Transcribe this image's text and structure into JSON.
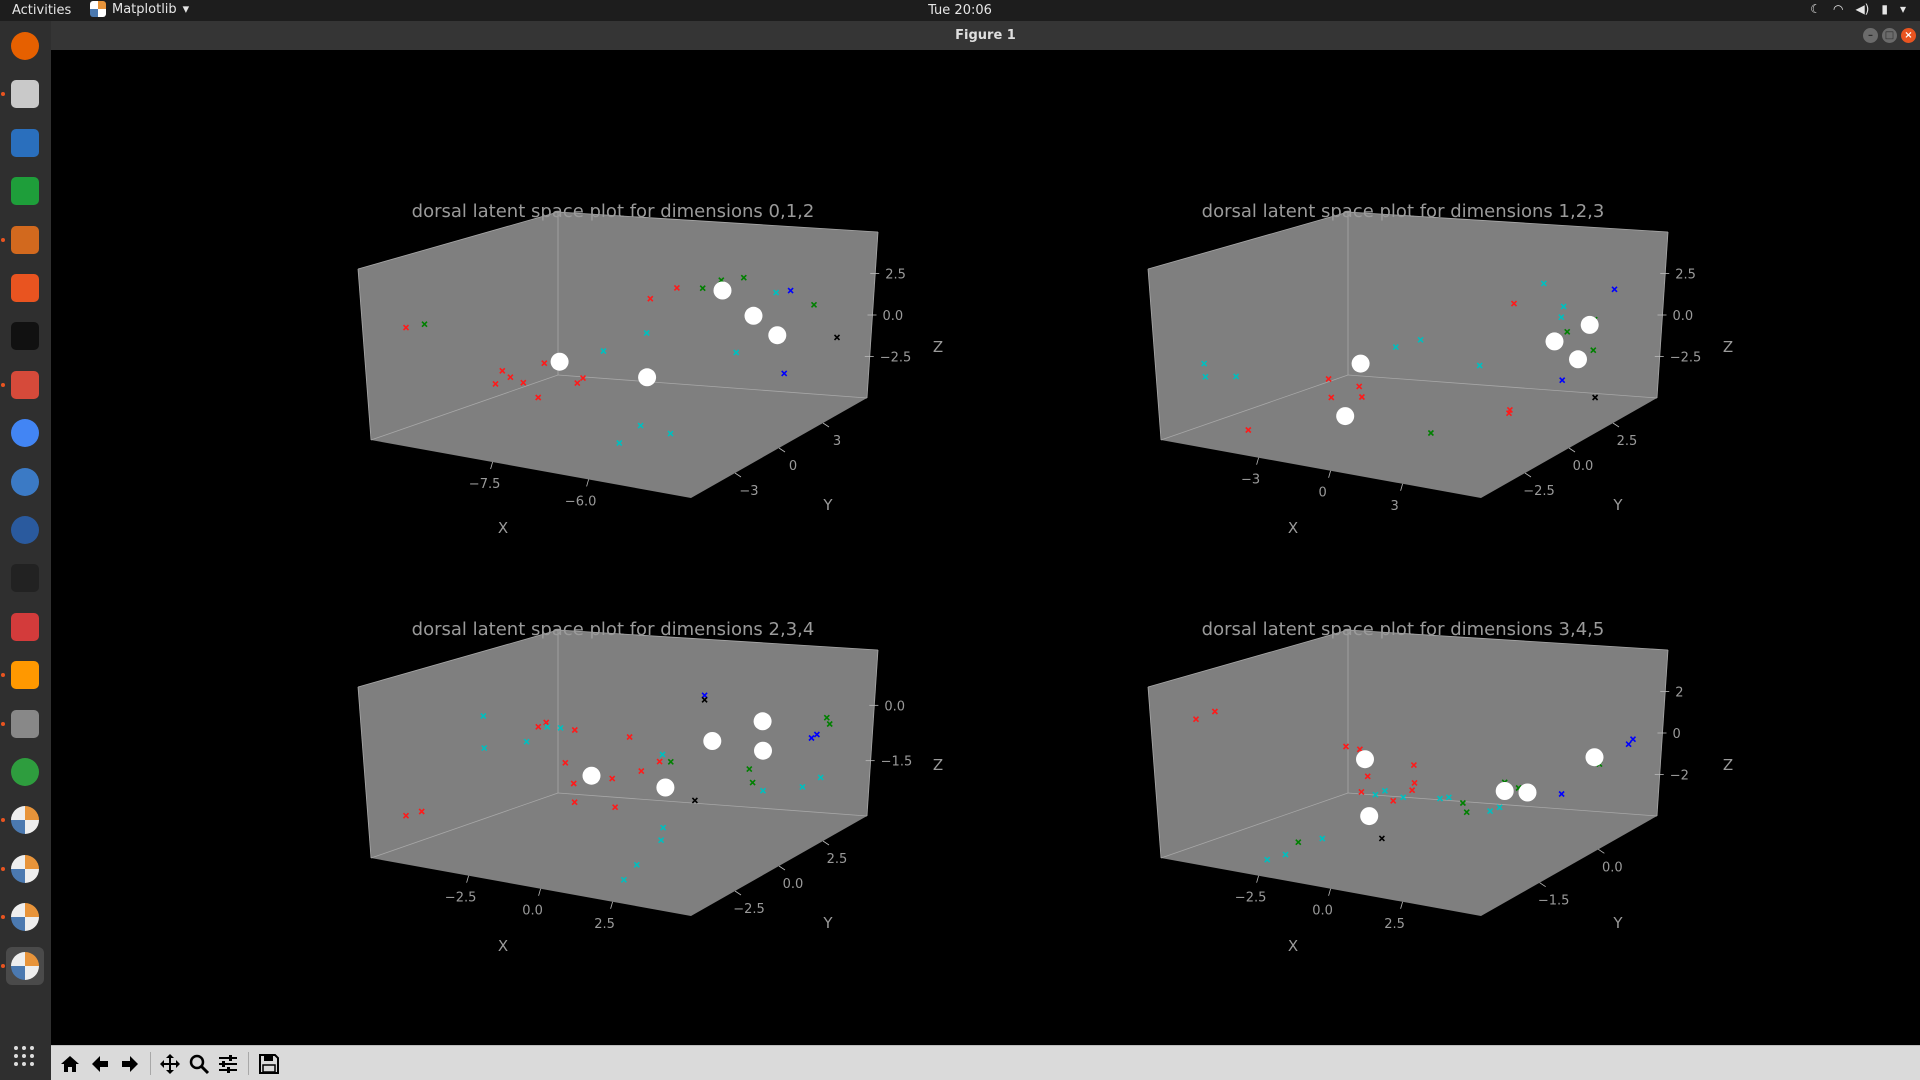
{
  "topbar": {
    "activities": "Activities",
    "app_name": "Matplotlib",
    "clock": "Tue 20:06"
  },
  "window": {
    "title": "Figure 1"
  },
  "dock": {
    "items": [
      {
        "name": "firefox",
        "color": "#e66000"
      },
      {
        "name": "files",
        "color": "#c9c9c9"
      },
      {
        "name": "libreoffice-writer",
        "color": "#2a6fbd"
      },
      {
        "name": "libreoffice-calc",
        "color": "#1e9e3a"
      },
      {
        "name": "libreoffice-impress",
        "color": "#d2691e"
      },
      {
        "name": "software-center",
        "color": "#e95420"
      },
      {
        "name": "inkscape",
        "color": "#111111"
      },
      {
        "name": "settings-tool",
        "color": "#d64a3a"
      },
      {
        "name": "chrome",
        "color": "#4285f4"
      },
      {
        "name": "globe-app",
        "color": "#3b7ac5"
      },
      {
        "name": "globe-app-2",
        "color": "#2a5a9e"
      },
      {
        "name": "terminal",
        "color": "#222222"
      },
      {
        "name": "editor",
        "color": "#d33b3b"
      },
      {
        "name": "sublime-text",
        "color": "#ff9800"
      },
      {
        "name": "printer",
        "color": "#888888"
      },
      {
        "name": "leaf-app",
        "color": "#2e9d3e"
      },
      {
        "name": "matplotlib-1",
        "color": "#e8943a"
      },
      {
        "name": "matplotlib-2",
        "color": "#e8943a"
      },
      {
        "name": "matplotlib-3",
        "color": "#e8943a"
      },
      {
        "name": "matplotlib-4",
        "color": "#e8943a"
      }
    ]
  },
  "colors": {
    "panel": "#7f7f7f",
    "text": "#9a9a9a",
    "red": "#ff1a1a",
    "green": "#008000",
    "cyan": "#00bfbf",
    "blue": "#0000ff",
    "black": "#000000",
    "centroid": "#ffffff"
  },
  "chart_data": [
    {
      "type": "scatter",
      "title": "dorsal latent space plot for dimensions 0,1,2",
      "xlabel": "X",
      "ylabel": "Y",
      "zlabel": "Z",
      "xticks": [
        "−7.5",
        "−6.0"
      ],
      "yticks": [
        "−3",
        "0",
        "3"
      ],
      "zticks": [
        "2.5",
        "0.0",
        "−2.5"
      ],
      "series": [
        {
          "color": "red",
          "points": [
            [
              -8.7,
              -3.8,
              1.2
            ],
            [
              -7.9,
              -1.5,
              -1.2
            ],
            [
              -7.6,
              -1.2,
              -2.0
            ],
            [
              -7.4,
              0.3,
              -1.5
            ],
            [
              -7.0,
              2.2,
              1.6
            ],
            [
              -6.8,
              2.8,
              2.0
            ],
            [
              -7.9,
              -1.9,
              -0.8
            ],
            [
              -7.8,
              -2.6,
              -1.1
            ],
            [
              -7.6,
              -0.9,
              -0.6
            ],
            [
              -7.2,
              -0.7,
              -1.3
            ],
            [
              -8.0,
              -0.5,
              -1.8
            ]
          ]
        },
        {
          "color": "green",
          "points": [
            [
              -8.5,
              -3.6,
              1.4
            ],
            [
              -6.3,
              3.2,
              2.5
            ],
            [
              -6.5,
              3.0,
              2.1
            ],
            [
              -5.3,
              4.2,
              1.7
            ],
            [
              -6.1,
              3.6,
              2.6
            ]
          ]
        },
        {
          "color": "cyan",
          "points": [
            [
              -7.2,
              0.6,
              -0.3
            ],
            [
              -6.8,
              1.3,
              0.5
            ],
            [
              -6.4,
              -1.5,
              -3.2
            ],
            [
              -6.3,
              -0.8,
              -2.6
            ],
            [
              -6.0,
              -0.4,
              -2.9
            ],
            [
              -5.9,
              2.5,
              -0.2
            ],
            [
              -5.6,
              3.4,
              2.3
            ]
          ]
        },
        {
          "color": "blue",
          "points": [
            [
              -5.4,
              3.4,
              2.5
            ],
            [
              -5.1,
              2.0,
              -0.5
            ]
          ]
        },
        {
          "color": "black",
          "points": [
            [
              -4.9,
              3.9,
              0.6
            ]
          ]
        },
        {
          "color": "centroid",
          "points": [
            [
              -7.5,
              -0.5,
              -0.6
            ],
            [
              -6.6,
              0.6,
              -1.1
            ],
            [
              -6.2,
              2.9,
              2.2
            ],
            [
              -5.8,
              3.0,
              1.3
            ],
            [
              -5.5,
              3.1,
              0.6
            ]
          ]
        }
      ]
    },
    {
      "type": "scatter",
      "title": "dorsal latent space plot for dimensions 1,2,3",
      "xlabel": "X",
      "ylabel": "Y",
      "zlabel": "Z",
      "xticks": [
        "−3",
        "0",
        "3"
      ],
      "yticks": [
        "−2.5",
        "0.0",
        "2.5"
      ],
      "zticks": [
        "2.5",
        "0.0",
        "−2.5"
      ],
      "series": [
        {
          "color": "red",
          "points": [
            [
              -2.3,
              -1.0,
              -2.4
            ],
            [
              -1.1,
              0.0,
              -0.5
            ],
            [
              -0.8,
              -0.3,
              -1.0
            ],
            [
              -0.5,
              0.2,
              -0.7
            ],
            [
              -0.2,
              -0.1,
              -0.9
            ],
            [
              0.9,
              3.3,
              1.6
            ],
            [
              2.1,
              1.6,
              -1.6
            ],
            [
              2.2,
              1.5,
              -1.4
            ]
          ]
        },
        {
          "color": "green",
          "points": [
            [
              0.8,
              0.8,
              -2.4
            ],
            [
              2.6,
              2.8,
              1.2
            ],
            [
              3.2,
              2.9,
              1.8
            ],
            [
              3.4,
              2.6,
              0.8
            ]
          ]
        },
        {
          "color": "cyan",
          "points": [
            [
              -3.2,
              -1.2,
              -0.5
            ],
            [
              -3.0,
              -1.5,
              0.2
            ],
            [
              -2.6,
              -1.0,
              -0.4
            ],
            [
              -0.3,
              1.1,
              0.5
            ],
            [
              0.0,
              1.5,
              0.7
            ],
            [
              0.6,
              2.6,
              -0.6
            ],
            [
              1.4,
              3.6,
              2.4
            ],
            [
              2.2,
              3.2,
              1.9
            ],
            [
              2.3,
              3.0,
              1.6
            ]
          ]
        },
        {
          "color": "blue",
          "points": [
            [
              3.3,
              3.4,
              2.8
            ],
            [
              3.1,
              2.0,
              -0.2
            ]
          ]
        },
        {
          "color": "black",
          "points": [
            [
              3.6,
              2.4,
              -0.9
            ]
          ]
        },
        {
          "color": "centroid",
          "points": [
            [
              -0.7,
              0.5,
              0.0
            ],
            [
              -0.3,
              -0.5,
              -1.5
            ],
            [
              2.6,
              2.4,
              1.0
            ],
            [
              3.0,
              3.0,
              1.5
            ],
            [
              3.1,
              2.5,
              0.4
            ]
          ]
        }
      ]
    },
    {
      "type": "scatter",
      "title": "dorsal latent space plot for dimensions 2,3,4",
      "xlabel": "X",
      "ylabel": "Y",
      "zlabel": "Z",
      "xticks": [
        "−2.5",
        "0.0",
        "2.5"
      ],
      "yticks": [
        "−2.5",
        "0.0",
        "2.5"
      ],
      "zticks": [
        "0.0",
        "−1.5"
      ],
      "series": [
        {
          "color": "red",
          "points": [
            [
              -2.3,
              -3.5,
              -1.6
            ],
            [
              -2.1,
              -3.3,
              -1.5
            ],
            [
              -1.0,
              -1.0,
              0.2
            ],
            [
              -0.9,
              -0.9,
              0.3
            ],
            [
              -0.6,
              -0.4,
              0.1
            ],
            [
              -0.5,
              -1.0,
              -0.5
            ],
            [
              -0.3,
              -1.1,
              -0.9
            ],
            [
              -0.1,
              -1.5,
              -1.2
            ],
            [
              0.0,
              -0.2,
              -0.9
            ],
            [
              0.0,
              0.5,
              -0.1
            ],
            [
              0.4,
              0.1,
              -0.7
            ],
            [
              0.6,
              0.4,
              -0.5
            ],
            [
              0.1,
              -0.3,
              -1.5
            ]
          ]
        },
        {
          "color": "green",
          "points": [
            [
              0.9,
              0.2,
              -0.4
            ],
            [
              1.8,
              1.4,
              -0.6
            ],
            [
              2.0,
              1.1,
              -0.8
            ],
            [
              2.5,
              3.0,
              0.4
            ],
            [
              2.6,
              2.9,
              0.3
            ]
          ]
        },
        {
          "color": "cyan",
          "points": [
            [
              -2.2,
              -0.6,
              0.1
            ],
            [
              -2.0,
              -1.0,
              -0.5
            ],
            [
              -1.4,
              -0.6,
              -0.3
            ],
            [
              -1.2,
              -0.2,
              0.0
            ],
            [
              -1.0,
              -0.1,
              0.0
            ],
            [
              0.7,
              0.3,
              -0.3
            ],
            [
              1.4,
              -1.2,
              -1.5
            ],
            [
              1.5,
              -1.5,
              -1.7
            ],
            [
              1.5,
              -3.0,
              -2.3
            ],
            [
              1.6,
              -2.7,
              -2.0
            ],
            [
              2.1,
              1.3,
              -1.0
            ],
            [
              2.6,
              1.8,
              -0.9
            ],
            [
              2.8,
              2.1,
              -0.7
            ]
          ]
        },
        {
          "color": "blue",
          "points": [
            [
              0.7,
              2.0,
              0.7
            ],
            [
              2.4,
              2.6,
              0.0
            ],
            [
              2.5,
              2.6,
              0.1
            ]
          ]
        },
        {
          "color": "black",
          "points": [
            [
              0.7,
              2.0,
              0.6
            ],
            [
              1.3,
              0.3,
              -1.2
            ]
          ]
        },
        {
          "color": "centroid",
          "points": [
            [
              -0.2,
              -0.6,
              -0.8
            ],
            [
              0.8,
              0.2,
              -1.0
            ],
            [
              1.3,
              1.0,
              0.0
            ],
            [
              2.0,
              1.5,
              0.5
            ],
            [
              2.1,
              1.3,
              -0.1
            ]
          ]
        }
      ]
    },
    {
      "type": "scatter",
      "title": "dorsal latent space plot for dimensions 3,4,5",
      "xlabel": "X",
      "ylabel": "Y",
      "zlabel": "Z",
      "xticks": [
        "−2.5",
        "0.0",
        "2.5"
      ],
      "yticks": [
        "−1.5",
        "0.0"
      ],
      "zticks": [
        "2",
        "0",
        "−2"
      ],
      "series": [
        {
          "color": "red",
          "points": [
            [
              -2.9,
              -1.2,
              2.8
            ],
            [
              -2.7,
              -1.0,
              3.0
            ],
            [
              -1.0,
              0.1,
              1.6
            ],
            [
              -0.8,
              0.2,
              1.5
            ],
            [
              -0.4,
              0.0,
              0.8
            ],
            [
              -0.2,
              -0.3,
              0.5
            ],
            [
              0.3,
              0.3,
              1.2
            ],
            [
              0.4,
              -0.2,
              0.3
            ],
            [
              0.6,
              0.0,
              0.6
            ],
            [
              0.2,
              0.4,
              0.5
            ]
          ]
        },
        {
          "color": "green",
          "points": [
            [
              -0.6,
              -1.2,
              -0.8
            ],
            [
              1.4,
              0.3,
              0.2
            ],
            [
              1.6,
              0.2,
              0.0
            ],
            [
              2.0,
              0.6,
              0.9
            ],
            [
              2.2,
              0.7,
              0.7
            ],
            [
              3.0,
              1.6,
              1.2
            ]
          ]
        },
        {
          "color": "cyan",
          "points": [
            [
              -1.3,
              -1.2,
              -1.6
            ],
            [
              -1.0,
              -1.1,
              -1.4
            ],
            [
              -0.4,
              -0.9,
              -0.8
            ],
            [
              0.0,
              -0.2,
              0.4
            ],
            [
              0.1,
              -0.1,
              0.5
            ],
            [
              0.4,
              0.0,
              0.3
            ],
            [
              1.0,
              0.2,
              0.3
            ],
            [
              1.2,
              0.2,
              0.4
            ],
            [
              1.9,
              0.4,
              0.0
            ],
            [
              2.0,
              0.5,
              0.1
            ]
          ]
        },
        {
          "color": "blue",
          "points": [
            [
              2.6,
              1.2,
              0.3
            ],
            [
              3.2,
              2.0,
              1.7
            ],
            [
              3.3,
              2.0,
              1.9
            ]
          ]
        },
        {
          "color": "black",
          "points": [
            [
              0.6,
              -0.6,
              -0.7
            ]
          ]
        },
        {
          "color": "centroid",
          "points": [
            [
              -0.8,
              0.3,
              1.1
            ],
            [
              0.2,
              -0.5,
              -0.1
            ],
            [
              2.0,
              0.6,
              0.6
            ],
            [
              2.4,
              0.7,
              0.6
            ],
            [
              3.0,
              1.5,
              1.5
            ]
          ]
        }
      ]
    }
  ]
}
